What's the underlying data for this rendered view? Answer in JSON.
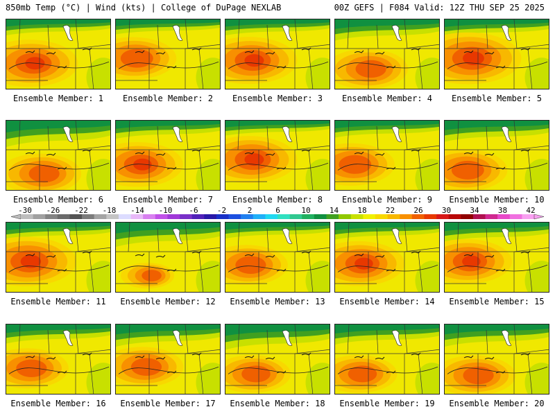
{
  "header": {
    "left_title": "850mb Temp (°C) | Wind (kts) | College of DuPage NEXLAB",
    "right_title": "00Z GEFS | F084 Valid: 12Z THU SEP 25 2025"
  },
  "members": [
    {
      "label": "Ensemble Member: 1",
      "hot_cx": 0.22,
      "hot_cy": 0.62,
      "hot": 1.0,
      "cool": 0.3
    },
    {
      "label": "Ensemble Member: 2",
      "hot_cx": 0.16,
      "hot_cy": 0.55,
      "hot": 0.9,
      "cool": 0.25
    },
    {
      "label": "Ensemble Member: 3",
      "hot_cx": 0.22,
      "hot_cy": 0.58,
      "hot": 1.0,
      "cool": 0.3
    },
    {
      "label": "Ensemble Member: 4",
      "hot_cx": 0.3,
      "hot_cy": 0.7,
      "hot": 0.85,
      "cool": 0.55
    },
    {
      "label": "Ensemble Member: 5",
      "hot_cx": 0.22,
      "hot_cy": 0.55,
      "hot": 1.1,
      "cool": 0.35
    },
    {
      "label": "Ensemble Member: 6",
      "hot_cx": 0.32,
      "hot_cy": 0.75,
      "hot": 0.85,
      "cool": 0.8
    },
    {
      "label": "Ensemble Member: 7",
      "hot_cx": 0.2,
      "hot_cy": 0.62,
      "hot": 0.95,
      "cool": 0.4
    },
    {
      "label": "Ensemble Member: 8",
      "hot_cx": 0.22,
      "hot_cy": 0.55,
      "hot": 1.0,
      "cool": 0.25
    },
    {
      "label": "Ensemble Member: 9",
      "hot_cx": 0.15,
      "hot_cy": 0.62,
      "hot": 0.9,
      "cool": 0.35
    },
    {
      "label": "Ensemble Member: 10",
      "hot_cx": 0.18,
      "hot_cy": 0.7,
      "hot": 0.9,
      "cool": 0.55
    },
    {
      "label": "Ensemble Member: 11",
      "hot_cx": 0.18,
      "hot_cy": 0.55,
      "hot": 1.05,
      "cool": 0.35
    },
    {
      "label": "Ensemble Member: 12",
      "hot_cx": 0.3,
      "hot_cy": 0.75,
      "hot": 0.55,
      "cool": 0.7
    },
    {
      "label": "Ensemble Member: 13",
      "hot_cx": 0.2,
      "hot_cy": 0.6,
      "hot": 0.85,
      "cool": 0.3
    },
    {
      "label": "Ensemble Member: 14",
      "hot_cx": 0.22,
      "hot_cy": 0.58,
      "hot": 0.95,
      "cool": 0.35
    },
    {
      "label": "Ensemble Member: 15",
      "hot_cx": 0.2,
      "hot_cy": 0.55,
      "hot": 0.95,
      "cool": 0.45
    },
    {
      "label": "Ensemble Member: 16",
      "hot_cx": 0.2,
      "hot_cy": 0.62,
      "hot": 0.85,
      "cool": 0.45
    },
    {
      "label": "Ensemble Member: 17",
      "hot_cx": 0.25,
      "hot_cy": 0.6,
      "hot": 0.85,
      "cool": 0.6
    },
    {
      "label": "Ensemble Member: 18",
      "hot_cx": 0.25,
      "hot_cy": 0.7,
      "hot": 0.8,
      "cool": 0.75
    },
    {
      "label": "Ensemble Member: 19",
      "hot_cx": 0.22,
      "hot_cy": 0.7,
      "hot": 0.8,
      "cool": 0.5
    },
    {
      "label": "Ensemble Member: 20",
      "hot_cx": 0.28,
      "hot_cy": 0.72,
      "hot": 0.85,
      "cool": 0.6
    }
  ],
  "colorbar": {
    "colors": [
      "#bdbdbd",
      "#a0a0a0",
      "#838383",
      "#6b6b6b",
      "#545454",
      "#7c7c7c",
      "#a4a4a4",
      "#c4c4c4",
      "#dcdcff",
      "#e8b8f8",
      "#d880f0",
      "#c050e8",
      "#a038d8",
      "#7830c8",
      "#5020b8",
      "#2818a8",
      "#1830c8",
      "#1c50e0",
      "#2080f0",
      "#20b0f8",
      "#20d8f0",
      "#30e0c0",
      "#30c890",
      "#20b060",
      "#109040",
      "#40a020",
      "#90c800",
      "#c8e000",
      "#f0f000",
      "#f8d800",
      "#f8b800",
      "#f89000",
      "#f06000",
      "#e83800",
      "#d81818",
      "#b80808",
      "#900000",
      "#b01050",
      "#d02890",
      "#e848c8",
      "#f070e0",
      "#f8a0f0"
    ],
    "tick_values": [
      "-30",
      "-26",
      "-22",
      "-18",
      "-14",
      "-10",
      "-6",
      "-2",
      "2",
      "6",
      "10",
      "14",
      "18",
      "22",
      "26",
      "30",
      "34",
      "38",
      "42"
    ]
  }
}
